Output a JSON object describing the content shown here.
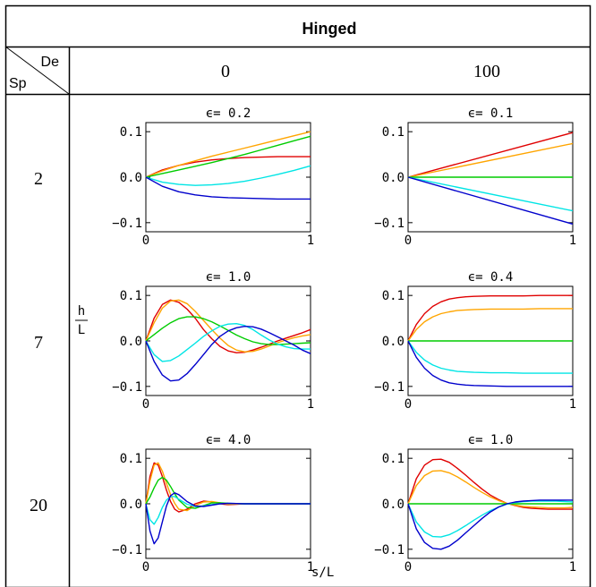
{
  "table": {
    "title": "Hinged",
    "corner_top": "De",
    "corner_bottom": "Sp",
    "col_headers": [
      "0",
      "100"
    ],
    "row_headers": [
      "2",
      "7",
      "20"
    ],
    "y_axis_label_top": "h",
    "y_axis_label_bottom": "L",
    "x_axis_label": "s/L"
  },
  "colors": {
    "series": [
      "#e00000",
      "#ffa500",
      "#00cc00",
      "#00e5e5",
      "#0000cc"
    ]
  },
  "chart_data": [
    {
      "type": "line",
      "row": 0,
      "col": 0,
      "title": "ϵ= 0.2",
      "xlim": [
        0,
        1
      ],
      "ylim": [
        -0.12,
        0.12
      ],
      "xticks": [
        "0",
        "1"
      ],
      "yticks": [
        "0.1",
        "0.0",
        "−0.1"
      ],
      "x": [
        0,
        0.1,
        0.2,
        0.3,
        0.4,
        0.5,
        0.6,
        0.7,
        0.8,
        0.9,
        1.0
      ],
      "series": [
        {
          "values": [
            0,
            0.016,
            0.026,
            0.033,
            0.038,
            0.041,
            0.043,
            0.044,
            0.045,
            0.045,
            0.045
          ]
        },
        {
          "values": [
            0,
            0.014,
            0.026,
            0.036,
            0.046,
            0.055,
            0.064,
            0.073,
            0.082,
            0.091,
            0.1
          ]
        },
        {
          "values": [
            0,
            0.008,
            0.016,
            0.024,
            0.032,
            0.041,
            0.05,
            0.06,
            0.07,
            0.08,
            0.09
          ]
        },
        {
          "values": [
            0,
            -0.011,
            -0.016,
            -0.018,
            -0.017,
            -0.014,
            -0.009,
            -0.002,
            0.006,
            0.015,
            0.025
          ]
        },
        {
          "values": [
            0,
            -0.02,
            -0.032,
            -0.039,
            -0.043,
            -0.045,
            -0.046,
            -0.047,
            -0.048,
            -0.048,
            -0.048
          ]
        }
      ]
    },
    {
      "type": "line",
      "row": 0,
      "col": 1,
      "title": "ϵ= 0.1",
      "xlim": [
        0,
        1
      ],
      "ylim": [
        -0.12,
        0.12
      ],
      "xticks": [
        "0",
        "1"
      ],
      "yticks": [
        "0.1",
        "0.0",
        "−0.1"
      ],
      "x": [
        0,
        1
      ],
      "series": [
        {
          "values": [
            0,
            0.098
          ]
        },
        {
          "values": [
            0,
            0.074
          ]
        },
        {
          "values": [
            0,
            0.0
          ]
        },
        {
          "values": [
            0,
            -0.074
          ]
        },
        {
          "values": [
            0,
            -0.103
          ]
        }
      ]
    },
    {
      "type": "line",
      "row": 1,
      "col": 0,
      "title": "ϵ= 1.0",
      "xlim": [
        0,
        1
      ],
      "ylim": [
        -0.12,
        0.12
      ],
      "xticks": [
        "0",
        "1"
      ],
      "yticks": [
        "0.1",
        "0.0",
        "−0.1"
      ],
      "x": [
        0,
        0.05,
        0.1,
        0.15,
        0.2,
        0.25,
        0.3,
        0.35,
        0.4,
        0.45,
        0.5,
        0.55,
        0.6,
        0.65,
        0.7,
        0.75,
        0.8,
        0.85,
        0.9,
        0.95,
        1.0
      ],
      "series": [
        {
          "values": [
            0,
            0.05,
            0.08,
            0.09,
            0.085,
            0.07,
            0.05,
            0.025,
            0.005,
            -0.012,
            -0.022,
            -0.026,
            -0.025,
            -0.02,
            -0.014,
            -0.007,
            0.0,
            0.006,
            0.012,
            0.018,
            0.025
          ]
        },
        {
          "values": [
            0,
            0.04,
            0.072,
            0.088,
            0.09,
            0.082,
            0.065,
            0.045,
            0.025,
            0.006,
            -0.01,
            -0.02,
            -0.024,
            -0.023,
            -0.018,
            -0.011,
            -0.004,
            0.002,
            0.007,
            0.011,
            0.014
          ]
        },
        {
          "values": [
            0,
            0.014,
            0.028,
            0.04,
            0.049,
            0.053,
            0.053,
            0.049,
            0.042,
            0.033,
            0.023,
            0.013,
            0.005,
            -0.002,
            -0.006,
            -0.008,
            -0.008,
            -0.007,
            -0.006,
            -0.005,
            -0.004
          ]
        },
        {
          "values": [
            0,
            -0.03,
            -0.045,
            -0.043,
            -0.033,
            -0.019,
            -0.005,
            0.01,
            0.022,
            0.032,
            0.037,
            0.038,
            0.034,
            0.025,
            0.013,
            0.002,
            -0.007,
            -0.013,
            -0.017,
            -0.018,
            -0.018
          ]
        },
        {
          "values": [
            0,
            -0.045,
            -0.075,
            -0.088,
            -0.086,
            -0.072,
            -0.052,
            -0.03,
            -0.008,
            0.01,
            0.022,
            0.029,
            0.032,
            0.031,
            0.026,
            0.018,
            0.009,
            0.0,
            -0.009,
            -0.02,
            -0.028
          ]
        }
      ]
    },
    {
      "type": "line",
      "row": 1,
      "col": 1,
      "title": "ϵ= 0.4",
      "xlim": [
        0,
        1
      ],
      "ylim": [
        -0.12,
        0.12
      ],
      "xticks": [
        "0",
        "1"
      ],
      "yticks": [
        "0.1",
        "0.0",
        "−0.1"
      ],
      "x": [
        0,
        0.05,
        0.1,
        0.15,
        0.2,
        0.25,
        0.3,
        0.35,
        0.4,
        0.5,
        0.6,
        0.7,
        0.8,
        0.9,
        1.0
      ],
      "series": [
        {
          "values": [
            0,
            0.036,
            0.06,
            0.076,
            0.086,
            0.092,
            0.095,
            0.097,
            0.098,
            0.099,
            0.099,
            0.099,
            0.1,
            0.1,
            0.1
          ]
        },
        {
          "values": [
            0,
            0.025,
            0.042,
            0.053,
            0.06,
            0.064,
            0.067,
            0.068,
            0.069,
            0.07,
            0.07,
            0.07,
            0.071,
            0.071,
            0.071
          ]
        },
        {
          "values": [
            0,
            0.0,
            0.0,
            0.0,
            0.0,
            0.0,
            0.0,
            0.0,
            0.0,
            0.0,
            0.0,
            0.0,
            0.0,
            0.0,
            0.0
          ]
        },
        {
          "values": [
            0,
            -0.025,
            -0.042,
            -0.053,
            -0.06,
            -0.064,
            -0.067,
            -0.068,
            -0.069,
            -0.07,
            -0.07,
            -0.071,
            -0.071,
            -0.071,
            -0.071
          ]
        },
        {
          "values": [
            0,
            -0.036,
            -0.06,
            -0.076,
            -0.086,
            -0.092,
            -0.095,
            -0.097,
            -0.098,
            -0.099,
            -0.1,
            -0.1,
            -0.1,
            -0.1,
            -0.1
          ]
        }
      ]
    },
    {
      "type": "line",
      "row": 2,
      "col": 0,
      "title": "ϵ= 4.0",
      "xlim": [
        0,
        1
      ],
      "ylim": [
        -0.12,
        0.12
      ],
      "xticks": [
        "0",
        "1"
      ],
      "yticks": [
        "0.1",
        "0.0",
        "−0.1"
      ],
      "x": [
        0,
        0.025,
        0.05,
        0.075,
        0.1,
        0.125,
        0.15,
        0.175,
        0.2,
        0.25,
        0.3,
        0.35,
        0.4,
        0.45,
        0.5,
        0.6,
        0.7,
        0.8,
        1.0
      ],
      "series": [
        {
          "values": [
            0,
            0.06,
            0.09,
            0.085,
            0.06,
            0.03,
            0.005,
            -0.012,
            -0.018,
            -0.012,
            0.0,
            0.006,
            0.004,
            0.0,
            -0.002,
            0.0,
            0.0,
            0.0,
            0.0
          ]
        },
        {
          "values": [
            0,
            0.05,
            0.085,
            0.09,
            0.072,
            0.045,
            0.02,
            0.001,
            -0.012,
            -0.015,
            -0.004,
            0.004,
            0.005,
            0.002,
            -0.001,
            0.0,
            0.0,
            0.0,
            0.0
          ]
        },
        {
          "values": [
            0,
            0.015,
            0.035,
            0.052,
            0.058,
            0.052,
            0.038,
            0.022,
            0.008,
            -0.008,
            -0.01,
            -0.004,
            0.002,
            0.002,
            0.001,
            0.0,
            0.0,
            0.0,
            0.0
          ]
        },
        {
          "values": [
            0,
            -0.035,
            -0.045,
            -0.03,
            -0.008,
            0.008,
            0.016,
            0.016,
            0.01,
            -0.001,
            -0.006,
            -0.005,
            -0.002,
            0.0,
            0.001,
            0.0,
            0.0,
            0.0,
            0.0
          ]
        },
        {
          "values": [
            0,
            -0.06,
            -0.088,
            -0.075,
            -0.04,
            -0.005,
            0.018,
            0.024,
            0.02,
            0.005,
            -0.005,
            -0.006,
            -0.003,
            0.0,
            0.001,
            0.0,
            0.0,
            0.0,
            0.0
          ]
        }
      ]
    },
    {
      "type": "line",
      "row": 2,
      "col": 1,
      "title": "ϵ= 1.0",
      "xlim": [
        0,
        1
      ],
      "ylim": [
        -0.12,
        0.12
      ],
      "xticks": [
        "0",
        "1"
      ],
      "yticks": [
        "0.1",
        "0.0",
        "−0.1"
      ],
      "x": [
        0,
        0.05,
        0.1,
        0.15,
        0.2,
        0.25,
        0.3,
        0.35,
        0.4,
        0.45,
        0.5,
        0.55,
        0.6,
        0.65,
        0.7,
        0.75,
        0.8,
        0.85,
        0.9,
        0.95,
        1.0
      ],
      "series": [
        {
          "values": [
            0,
            0.055,
            0.085,
            0.097,
            0.098,
            0.091,
            0.078,
            0.063,
            0.047,
            0.032,
            0.019,
            0.009,
            0.001,
            -0.004,
            -0.008,
            -0.01,
            -0.011,
            -0.012,
            -0.012,
            -0.012,
            -0.012
          ]
        },
        {
          "values": [
            0,
            0.04,
            0.062,
            0.072,
            0.073,
            0.068,
            0.059,
            0.048,
            0.036,
            0.025,
            0.015,
            0.007,
            0.001,
            -0.003,
            -0.006,
            -0.007,
            -0.008,
            -0.009,
            -0.009,
            -0.009,
            -0.008
          ]
        },
        {
          "values": [
            0,
            0.0,
            0.0,
            0.0,
            0.0,
            0.0,
            0.0,
            0.0,
            0.0,
            0.0,
            0.0,
            0.0,
            0.0,
            0.0,
            0.0,
            0.0,
            0.0,
            0.0,
            0.0,
            0.0,
            0.0
          ]
        },
        {
          "values": [
            0,
            -0.04,
            -0.062,
            -0.072,
            -0.073,
            -0.068,
            -0.059,
            -0.048,
            -0.036,
            -0.025,
            -0.015,
            -0.007,
            -0.001,
            0.003,
            0.005,
            0.006,
            0.006,
            0.006,
            0.006,
            0.005,
            0.004
          ]
        },
        {
          "values": [
            0,
            -0.055,
            -0.085,
            -0.098,
            -0.1,
            -0.093,
            -0.08,
            -0.064,
            -0.048,
            -0.032,
            -0.018,
            -0.007,
            0.0,
            0.004,
            0.006,
            0.007,
            0.008,
            0.008,
            0.008,
            0.008,
            0.008
          ]
        }
      ]
    }
  ]
}
